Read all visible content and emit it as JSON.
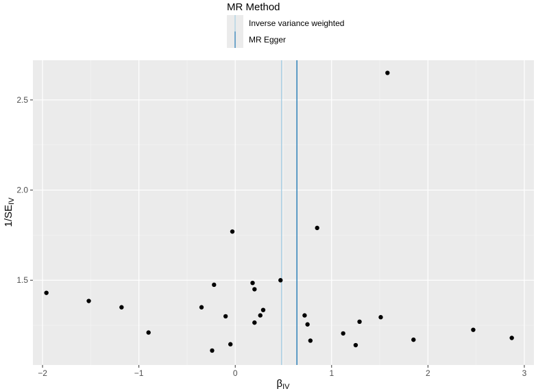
{
  "chart_data": {
    "type": "scatter",
    "title": "",
    "xlabel": "β",
    "xlabel_sub": "IV",
    "ylabel": "1/SE",
    "ylabel_sub": "IV",
    "xlim": [
      -2.1,
      3.1
    ],
    "ylim": [
      1.03,
      2.72
    ],
    "x_ticks": [
      -2,
      -1,
      0,
      1,
      2,
      3
    ],
    "x_tick_labels": [
      "−2",
      "−1",
      "0",
      "1",
      "2",
      "3"
    ],
    "y_ticks": [
      1.5,
      2.0,
      2.5
    ],
    "y_tick_labels": [
      "1.5",
      "2.0",
      "2.5"
    ],
    "grid": true,
    "legend": {
      "title": "MR Method",
      "placement": "top",
      "entries": [
        {
          "label": "Inverse variance weighted",
          "color": "#a6cee3"
        },
        {
          "label": "MR Egger",
          "color": "#1f78b4"
        }
      ]
    },
    "vlines": [
      {
        "method": "Inverse variance weighted",
        "x": 0.48,
        "color": "#a6cee3"
      },
      {
        "method": "MR Egger",
        "x": 0.64,
        "color": "#1f78b4"
      }
    ],
    "points": [
      {
        "x": 1.58,
        "y": 2.65
      },
      {
        "x": -0.03,
        "y": 1.77
      },
      {
        "x": 0.85,
        "y": 1.79
      },
      {
        "x": 0.47,
        "y": 1.5
      },
      {
        "x": -1.96,
        "y": 1.43
      },
      {
        "x": -1.52,
        "y": 1.385
      },
      {
        "x": -1.18,
        "y": 1.35
      },
      {
        "x": -0.9,
        "y": 1.21
      },
      {
        "x": -0.35,
        "y": 1.35
      },
      {
        "x": -0.22,
        "y": 1.475
      },
      {
        "x": 0.18,
        "y": 1.485
      },
      {
        "x": 0.2,
        "y": 1.45
      },
      {
        "x": -0.1,
        "y": 1.3
      },
      {
        "x": 0.2,
        "y": 1.265
      },
      {
        "x": 0.26,
        "y": 1.305
      },
      {
        "x": 0.29,
        "y": 1.335
      },
      {
        "x": -0.05,
        "y": 1.145
      },
      {
        "x": -0.24,
        "y": 1.11
      },
      {
        "x": 0.72,
        "y": 1.305
      },
      {
        "x": 0.75,
        "y": 1.255
      },
      {
        "x": 0.78,
        "y": 1.165
      },
      {
        "x": 1.12,
        "y": 1.205
      },
      {
        "x": 1.25,
        "y": 1.14
      },
      {
        "x": 1.29,
        "y": 1.27
      },
      {
        "x": 1.51,
        "y": 1.295
      },
      {
        "x": 1.85,
        "y": 1.17
      },
      {
        "x": 2.47,
        "y": 1.225
      },
      {
        "x": 2.87,
        "y": 1.18
      }
    ]
  }
}
